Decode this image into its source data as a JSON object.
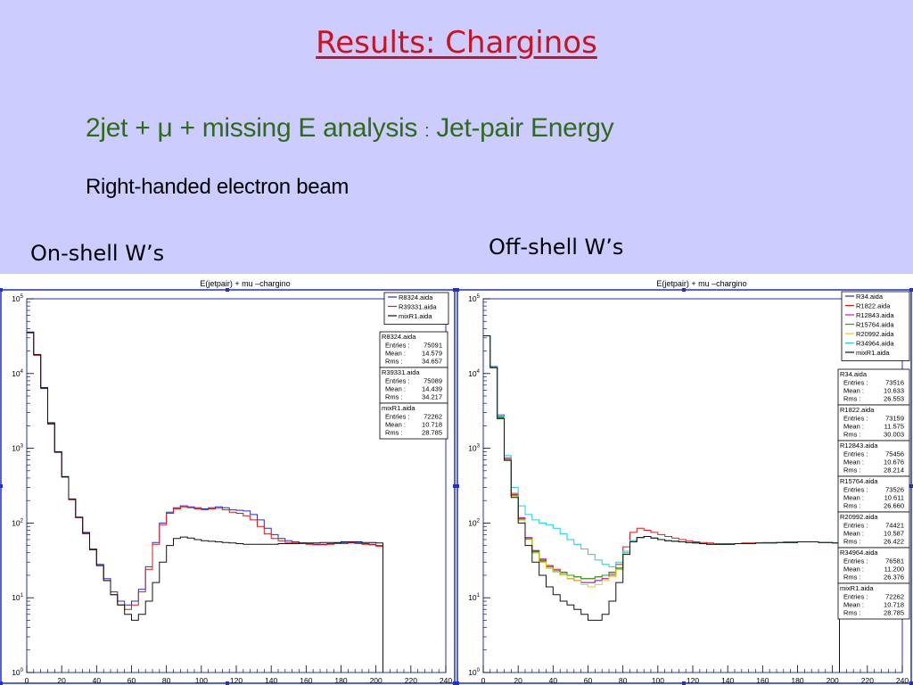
{
  "slide": {
    "title": "Results: Charginos",
    "subtitle_main": "2jet + μ + missing  E analysis",
    "subtitle_colon": ":",
    "subtitle_tail": "Jet-pair Energy",
    "beam": "Right-handed electron beam",
    "left_label": "On-shell W’s",
    "right_label": "Off-shell W’s"
  },
  "chart_data": [
    {
      "type": "line",
      "title": "E(jetpair) + mu –chargino",
      "xlim": [
        0,
        240
      ],
      "ylim": [
        1,
        100000
      ],
      "yscale": "log",
      "x_ticks": [
        "0",
        "20",
        "40",
        "60",
        "80",
        "100",
        "120",
        "140",
        "160",
        "180",
        "200",
        "220",
        "240"
      ],
      "y_ticks": [
        "10^0",
        "10^1",
        "10^2",
        "10^3",
        "10^4",
        "10^5"
      ],
      "grid": false,
      "legend_position": "top-right",
      "x": [
        2,
        6,
        10,
        14,
        18,
        22,
        26,
        30,
        34,
        38,
        42,
        46,
        50,
        54,
        58,
        62,
        66,
        70,
        74,
        78,
        82,
        86,
        90,
        94,
        98,
        102,
        106,
        110,
        114,
        118,
        122,
        126,
        130,
        134,
        138,
        142,
        146,
        150,
        154,
        158,
        162,
        166,
        170,
        174,
        178,
        182,
        186,
        190,
        194,
        198,
        202
      ],
      "series": [
        {
          "name": "R8324.aida",
          "color": "#1f2fd0",
          "entries": "75091",
          "mean": "14.579",
          "rms": "34.657",
          "values": [
            36000,
            18000,
            6500,
            2200,
            900,
            420,
            210,
            120,
            75,
            45,
            28,
            18,
            12,
            9,
            8,
            9,
            13,
            26,
            55,
            100,
            140,
            160,
            170,
            165,
            160,
            155,
            160,
            165,
            160,
            150,
            148,
            145,
            130,
            110,
            85,
            70,
            62,
            58,
            56,
            54,
            53,
            52,
            52,
            53,
            54,
            54,
            55,
            54,
            53,
            52,
            50
          ]
        },
        {
          "name": "R39331.aida",
          "color": "#e01818",
          "entries": "75089",
          "mean": "14.439",
          "rms": "34.217",
          "values": [
            35000,
            17500,
            6300,
            2100,
            880,
            410,
            205,
            118,
            72,
            44,
            27,
            17,
            11,
            8,
            7,
            8,
            12,
            24,
            52,
            95,
            135,
            155,
            165,
            160,
            155,
            150,
            155,
            158,
            150,
            140,
            135,
            125,
            110,
            90,
            72,
            62,
            58,
            55,
            54,
            53,
            52,
            51,
            51,
            52,
            53,
            53,
            54,
            53,
            52,
            51,
            49
          ]
        },
        {
          "name": "mixR1.aida",
          "color": "#111111",
          "entries": "72262",
          "mean": "10.718",
          "rms": "28.785",
          "values": [
            35500,
            17800,
            6400,
            2150,
            890,
            415,
            208,
            119,
            73,
            44,
            27,
            17,
            11,
            8,
            6,
            5,
            6,
            9,
            16,
            30,
            50,
            62,
            65,
            63,
            60,
            58,
            57,
            56,
            55,
            54,
            53,
            52,
            52,
            52,
            52,
            52,
            53,
            53,
            53,
            54,
            54,
            54,
            55,
            55,
            55,
            56,
            56,
            56,
            55,
            55,
            54
          ]
        }
      ]
    },
    {
      "type": "line",
      "title": "E(jetpair) + mu –chargino",
      "xlim": [
        0,
        240
      ],
      "ylim": [
        1,
        100000
      ],
      "yscale": "log",
      "x_ticks": [
        "0",
        "20",
        "40",
        "60",
        "80",
        "100",
        "120",
        "140",
        "160",
        "180",
        "200",
        "220",
        "240"
      ],
      "y_ticks": [
        "10^0",
        "10^1",
        "10^2",
        "10^3",
        "10^4",
        "10^5"
      ],
      "grid": false,
      "legend_position": "top-right",
      "x": [
        2,
        6,
        10,
        14,
        18,
        22,
        26,
        30,
        34,
        38,
        42,
        46,
        50,
        54,
        58,
        62,
        66,
        70,
        74,
        78,
        82,
        86,
        90,
        94,
        98,
        102,
        106,
        110,
        114,
        118,
        122,
        126,
        130,
        134,
        138,
        142,
        146,
        150,
        154,
        158,
        162,
        166,
        170,
        174,
        178,
        182,
        186,
        190,
        194,
        198,
        202
      ],
      "series": [
        {
          "name": "R34.aida",
          "color": "#1f2fd0",
          "entries": "73516",
          "mean": "10.633",
          "rms": "26.553",
          "values": [
            32000,
            12000,
            2500,
            700,
            230,
            110,
            60,
            40,
            30,
            25,
            22,
            20,
            18,
            17,
            16,
            16,
            17,
            18,
            20,
            25,
            40,
            58,
            64,
            66,
            63,
            60,
            58,
            57,
            56,
            55,
            54,
            53,
            52,
            52,
            52,
            52,
            53,
            53,
            53,
            54,
            54,
            54,
            55,
            55,
            55,
            56,
            56,
            56,
            55,
            55,
            54
          ]
        },
        {
          "name": "R1822.aida",
          "color": "#e01818",
          "entries": "73159",
          "mean": "11.575",
          "rms": "30.003",
          "values": [
            32000,
            12500,
            2600,
            720,
            240,
            115,
            62,
            42,
            32,
            27,
            24,
            22,
            20,
            19,
            18,
            18,
            19,
            20,
            22,
            28,
            48,
            75,
            85,
            80,
            75,
            70,
            66,
            63,
            60,
            58,
            56,
            55,
            54,
            53,
            53,
            53,
            53,
            54,
            54,
            54,
            55,
            55,
            55,
            56,
            56,
            56,
            56,
            56,
            55,
            55,
            54
          ]
        },
        {
          "name": "R12843.aida",
          "color": "#d010d0",
          "entries": "75456",
          "mean": "10.676",
          "rms": "28.214",
          "values": [
            32000,
            12500,
            2800,
            750,
            250,
            118,
            64,
            43,
            33,
            27,
            23,
            20,
            18,
            17,
            16,
            16,
            17,
            18,
            20,
            24,
            40,
            58,
            64,
            66,
            63,
            60,
            58,
            57,
            56,
            55,
            54,
            53,
            52,
            52,
            52,
            52,
            53,
            53,
            53,
            54,
            54,
            54,
            55,
            55,
            55,
            56,
            56,
            56,
            55,
            55,
            54
          ]
        },
        {
          "name": "R15764.aida",
          "color": "#10a810",
          "entries": "73526",
          "mean": "10.611",
          "rms": "26.660",
          "values": [
            32000,
            12200,
            2550,
            710,
            235,
            112,
            61,
            41,
            31,
            26,
            23,
            21,
            20,
            19,
            18,
            18,
            19,
            20,
            21,
            25,
            40,
            58,
            64,
            66,
            63,
            60,
            58,
            57,
            56,
            55,
            54,
            53,
            52,
            52,
            52,
            52,
            53,
            53,
            53,
            54,
            54,
            54,
            55,
            55,
            55,
            56,
            56,
            56,
            55,
            55,
            54
          ]
        },
        {
          "name": "R20992.aida",
          "color": "#d8d800",
          "entries": "74421",
          "mean": "10.587",
          "rms": "26.422",
          "values": [
            32000,
            12000,
            2500,
            700,
            230,
            110,
            60,
            40,
            30,
            25,
            22,
            20,
            18,
            17,
            15,
            14,
            15,
            17,
            19,
            24,
            40,
            58,
            64,
            66,
            63,
            60,
            58,
            57,
            56,
            55,
            54,
            53,
            52,
            52,
            52,
            52,
            53,
            53,
            53,
            54,
            54,
            54,
            55,
            55,
            55,
            56,
            56,
            56,
            55,
            55,
            54
          ]
        },
        {
          "name": "R34964.aida",
          "color": "#18d0e0",
          "entries": "76581",
          "mean": "11.200",
          "rms": "26.376",
          "values": [
            32000,
            12500,
            2700,
            800,
            300,
            170,
            130,
            110,
            100,
            95,
            85,
            72,
            60,
            52,
            45,
            38,
            32,
            28,
            26,
            30,
            42,
            58,
            64,
            66,
            63,
            60,
            58,
            57,
            56,
            55,
            54,
            53,
            52,
            52,
            52,
            52,
            53,
            53,
            53,
            54,
            54,
            54,
            55,
            55,
            55,
            56,
            56,
            56,
            55,
            55,
            54
          ]
        },
        {
          "name": "mixR1.aida",
          "color": "#111111",
          "entries": "72262",
          "mean": "10.718",
          "rms": "28.785",
          "values": [
            32000,
            12000,
            2500,
            690,
            220,
            100,
            50,
            30,
            20,
            14,
            11,
            9,
            8,
            7,
            6,
            5,
            5,
            6,
            9,
            16,
            38,
            56,
            64,
            66,
            63,
            60,
            58,
            57,
            56,
            55,
            54,
            53,
            52,
            52,
            52,
            52,
            53,
            53,
            53,
            54,
            54,
            54,
            55,
            55,
            55,
            56,
            56,
            56,
            55,
            55,
            54
          ]
        }
      ]
    }
  ]
}
